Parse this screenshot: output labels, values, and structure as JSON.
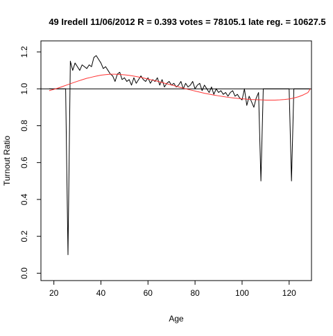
{
  "chart_data": {
    "type": "line",
    "title": "49 Iredell 11/06/2012 R = 0.393 votes = 78105.1 late reg. = 10627.5",
    "xlabel": "Age",
    "ylabel": "Turnout Ratio",
    "xlim": [
      14.5,
      129.5
    ],
    "ylim": [
      -0.04,
      1.26
    ],
    "x_ticks": [
      20,
      40,
      60,
      80,
      100,
      120
    ],
    "x_tick_labels": [
      "20",
      "40",
      "60",
      "80",
      "100",
      "120"
    ],
    "y_ticks": [
      0.0,
      0.2,
      0.4,
      0.6,
      0.8,
      1.0,
      1.2
    ],
    "y_tick_labels": [
      "0.0",
      "0.2",
      "0.4",
      "0.6",
      "0.8",
      "1.0",
      "1.2"
    ],
    "grid": false,
    "series": [
      {
        "color": "#000000",
        "x": [
          18,
          19,
          20,
          21,
          22,
          23,
          24,
          25,
          26,
          27,
          28,
          29,
          30,
          31,
          32,
          33,
          34,
          35,
          36,
          37,
          38,
          39,
          40,
          41,
          42,
          43,
          44,
          45,
          46,
          47,
          48,
          49,
          50,
          51,
          52,
          53,
          54,
          55,
          56,
          57,
          58,
          59,
          60,
          61,
          62,
          63,
          64,
          65,
          66,
          67,
          68,
          69,
          70,
          71,
          72,
          73,
          74,
          75,
          76,
          77,
          78,
          79,
          80,
          81,
          82,
          83,
          84,
          85,
          86,
          87,
          88,
          89,
          90,
          91,
          92,
          93,
          94,
          95,
          96,
          97,
          98,
          99,
          100,
          101,
          102,
          103,
          104,
          105,
          106,
          107,
          108,
          109,
          110,
          111,
          112,
          113,
          114,
          115,
          116,
          117,
          118,
          119,
          120,
          121,
          122,
          123,
          124,
          125,
          126,
          127,
          128,
          129
        ],
        "y": [
          1.0,
          1.0,
          1.0,
          1.0,
          1.0,
          1.0,
          1.0,
          1.0,
          0.1,
          1.15,
          1.1,
          1.14,
          1.12,
          1.1,
          1.13,
          1.12,
          1.11,
          1.13,
          1.12,
          1.17,
          1.18,
          1.16,
          1.14,
          1.11,
          1.12,
          1.1,
          1.08,
          1.07,
          1.04,
          1.08,
          1.09,
          1.05,
          1.06,
          1.04,
          1.05,
          1.02,
          1.06,
          1.03,
          1.05,
          1.07,
          1.05,
          1.04,
          1.06,
          1.03,
          1.05,
          1.04,
          1.06,
          1.02,
          1.05,
          1.01,
          1.03,
          1.04,
          1.02,
          1.03,
          1.01,
          1.02,
          1.04,
          1.0,
          1.03,
          1.01,
          1.02,
          1.04,
          1.0,
          1.02,
          1.03,
          0.99,
          1.02,
          1.0,
          0.98,
          1.01,
          0.97,
          1.0,
          0.98,
          0.99,
          0.97,
          0.98,
          0.96,
          0.98,
          0.99,
          0.96,
          0.97,
          0.95,
          0.94,
          1.0,
          0.91,
          0.96,
          0.93,
          0.9,
          0.95,
          0.98,
          0.5,
          1.0,
          1.0,
          1.0,
          1.0,
          1.0,
          1.0,
          1.0,
          1.0,
          1.0,
          1.0,
          1.0,
          1.0,
          0.5,
          1.0,
          1.0,
          1.0,
          1.0,
          1.0,
          1.0,
          1.0,
          1.0
        ]
      },
      {
        "color": "#ff3333",
        "x": [
          18,
          20,
          22,
          24,
          26,
          28,
          30,
          32,
          34,
          36,
          38,
          40,
          42,
          44,
          46,
          48,
          50,
          52,
          54,
          56,
          58,
          60,
          62,
          64,
          66,
          68,
          70,
          72,
          74,
          76,
          78,
          80,
          82,
          84,
          86,
          88,
          90,
          92,
          94,
          96,
          98,
          100,
          102,
          104,
          106,
          108,
          110,
          112,
          114,
          116,
          118,
          120,
          122,
          124,
          126,
          128,
          129
        ],
        "y": [
          0.99,
          0.997,
          1.005,
          1.014,
          1.023,
          1.032,
          1.041,
          1.049,
          1.057,
          1.063,
          1.069,
          1.074,
          1.077,
          1.079,
          1.079,
          1.078,
          1.076,
          1.073,
          1.069,
          1.064,
          1.059,
          1.053,
          1.047,
          1.041,
          1.034,
          1.027,
          1.021,
          1.014,
          1.007,
          1.0,
          0.994,
          0.988,
          0.982,
          0.976,
          0.971,
          0.966,
          0.962,
          0.958,
          0.954,
          0.951,
          0.948,
          0.946,
          0.944,
          0.942,
          0.941,
          0.94,
          0.939,
          0.939,
          0.939,
          0.94,
          0.942,
          0.945,
          0.95,
          0.957,
          0.967,
          0.98,
          1.0
        ]
      }
    ],
    "reference_lines": [
      {
        "orientation": "horizontal",
        "y": 1.0,
        "color": "#000000"
      }
    ]
  }
}
